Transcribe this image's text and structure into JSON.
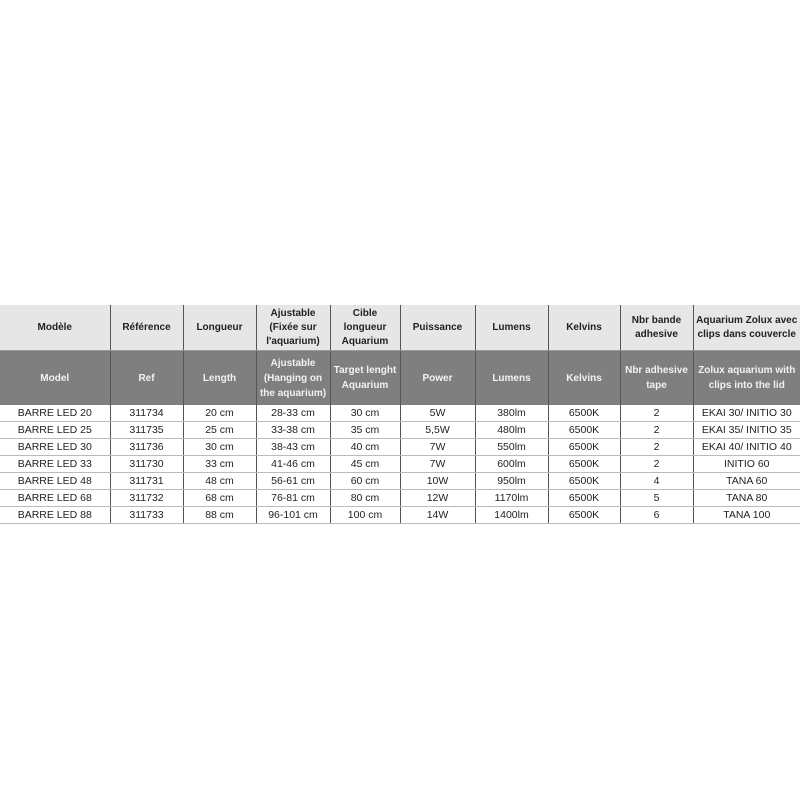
{
  "headers_fr": [
    "Modèle",
    "Référence",
    "Longueur",
    "Ajustable (Fixée sur l'aquarium)",
    "Cible longueur Aquarium",
    "Puissance",
    "Lumens",
    "Kelvins",
    "Nbr bande adhesive",
    "Aquarium Zolux avec clips dans couvercle"
  ],
  "headers_en": [
    "Model",
    "Ref",
    "Length",
    "Ajustable (Hanging on the aquarium)",
    "Target lenght Aquarium",
    "Power",
    "Lumens",
    "Kelvins",
    "Nbr adhesive tape",
    "Zolux aquarium with clips into the lid"
  ],
  "rows": [
    [
      "BARRE LED 20",
      "311734",
      "20 cm",
      "28-33 cm",
      "30 cm",
      "5W",
      "380lm",
      "6500K",
      "2",
      "EKAI 30/ INITIO 30"
    ],
    [
      "BARRE LED 25",
      "311735",
      "25 cm",
      "33-38 cm",
      "35 cm",
      "5,5W",
      "480lm",
      "6500K",
      "2",
      "EKAI 35/ INITIO 35"
    ],
    [
      "BARRE LED 30",
      "311736",
      "30 cm",
      "38-43 cm",
      "40 cm",
      "7W",
      "550lm",
      "6500K",
      "2",
      "EKAI 40/ INITIO 40"
    ],
    [
      "BARRE LED 33",
      "311730",
      "33 cm",
      "41-46 cm",
      "45 cm",
      "7W",
      "600lm",
      "6500K",
      "2",
      "INITIO 60"
    ],
    [
      "BARRE LED 48",
      "311731",
      "48 cm",
      "56-61 cm",
      "60 cm",
      "10W",
      "950lm",
      "6500K",
      "4",
      "TANA 60"
    ],
    [
      "BARRE LED 68",
      "311732",
      "68 cm",
      "76-81 cm",
      "80 cm",
      "12W",
      "1170lm",
      "6500K",
      "5",
      "TANA 80"
    ],
    [
      "BARRE LED 88",
      "311733",
      "88 cm",
      "96-101 cm",
      "100 cm",
      "14W",
      "1400lm",
      "6500K",
      "6",
      "TANA 100"
    ]
  ]
}
